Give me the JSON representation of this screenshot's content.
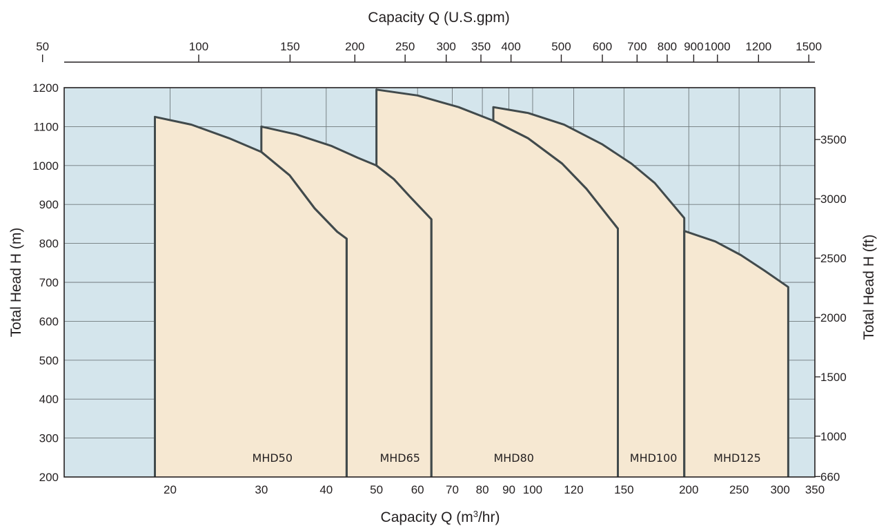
{
  "chart_data": {
    "type": "area",
    "x_scale": "log",
    "top_axis": {
      "title": "Capacity  Q (U.S.gpm)",
      "ticks": [
        50,
        100,
        150,
        200,
        250,
        300,
        350,
        400,
        500,
        600,
        700,
        800,
        900,
        1000,
        1200,
        1500
      ],
      "tick_labels": [
        "50",
        "100",
        "150",
        "200",
        "250",
        "300",
        "350",
        "400",
        "500",
        "600",
        "700",
        "800",
        "900",
        "1000",
        "1200",
        "1500"
      ]
    },
    "bottom_axis": {
      "title_prefix": "Capacity  Q (m",
      "title_sup": "3",
      "title_suffix": "/hr)",
      "ticks": [
        20,
        30,
        40,
        50,
        60,
        70,
        80,
        90,
        100,
        120,
        150,
        200,
        250,
        300,
        350
      ],
      "tick_labels": [
        "20",
        "30",
        "40",
        "50",
        "60",
        "70",
        "80",
        "90",
        "100",
        "120",
        "150",
        "200",
        "250",
        "300",
        "350"
      ],
      "range": [
        12.5,
        350
      ]
    },
    "left_axis": {
      "title": "Total Head  H (m)",
      "ticks": [
        200,
        300,
        400,
        500,
        600,
        700,
        800,
        900,
        1000,
        1100,
        1200
      ],
      "tick_labels": [
        "200",
        "300",
        "400",
        "500",
        "600",
        "700",
        "800",
        "900",
        "1000",
        "1100",
        "1200"
      ],
      "range": [
        200,
        1200
      ]
    },
    "right_axis": {
      "title": "Total Head  H (ft)",
      "ticks": [
        660,
        1000,
        1500,
        2000,
        2500,
        3000,
        3500
      ],
      "tick_labels": [
        "660",
        "1000",
        "1500",
        "2000",
        "2500",
        "3000",
        "3500"
      ]
    },
    "grid": true,
    "colors": {
      "plot_background": "#d4e5ec",
      "region_fill": "#f6e8d2",
      "outline": "#414a4c",
      "grid": "#6f787b",
      "axis": "#231f20"
    },
    "series": [
      {
        "name": "MHD50",
        "label_at": [
          31.5,
          250
        ],
        "points": [
          [
            18.7,
            200
          ],
          [
            18.7,
            1125
          ],
          [
            22,
            1105
          ],
          [
            26,
            1070
          ],
          [
            30,
            1035
          ],
          [
            34,
            975
          ],
          [
            38,
            890
          ],
          [
            42,
            830
          ],
          [
            43.8,
            812
          ],
          [
            43.8,
            200
          ]
        ]
      },
      {
        "name": "MHD65",
        "label_at": [
          55.5,
          250
        ],
        "points": [
          [
            43.8,
            200
          ],
          [
            43.8,
            812
          ],
          [
            42,
            830
          ],
          [
            38,
            890
          ],
          [
            34,
            975
          ],
          [
            30,
            1035
          ],
          [
            30,
            1100
          ],
          [
            35,
            1080
          ],
          [
            41,
            1050
          ],
          [
            46,
            1020
          ],
          [
            50,
            1000
          ],
          [
            54,
            965
          ],
          [
            58,
            920
          ],
          [
            63.8,
            862
          ],
          [
            63.8,
            200
          ]
        ]
      },
      {
        "name": "MHD80",
        "label_at": [
          92,
          250
        ],
        "points": [
          [
            63.8,
            200
          ],
          [
            63.8,
            862
          ],
          [
            58,
            920
          ],
          [
            54,
            965
          ],
          [
            50,
            1000
          ],
          [
            50,
            1195
          ],
          [
            60,
            1180
          ],
          [
            72,
            1150
          ],
          [
            84,
            1115
          ],
          [
            98,
            1070
          ],
          [
            114,
            1005
          ],
          [
            127,
            940
          ],
          [
            146,
            838
          ],
          [
            146,
            200
          ]
        ]
      },
      {
        "name": "MHD100",
        "label_at": [
          171,
          250
        ],
        "points": [
          [
            146,
            200
          ],
          [
            146,
            838
          ],
          [
            127,
            940
          ],
          [
            114,
            1005
          ],
          [
            98,
            1070
          ],
          [
            84,
            1115
          ],
          [
            84,
            1150
          ],
          [
            98,
            1135
          ],
          [
            115,
            1105
          ],
          [
            136,
            1055
          ],
          [
            155,
            1005
          ],
          [
            172,
            955
          ],
          [
            196,
            865
          ],
          [
            196,
            200
          ]
        ]
      },
      {
        "name": "MHD125",
        "label_at": [
          248,
          250
        ],
        "points": [
          [
            196,
            200
          ],
          [
            196,
            832
          ],
          [
            225,
            805
          ],
          [
            252,
            770
          ],
          [
            280,
            730
          ],
          [
            311,
            688
          ],
          [
            311,
            200
          ]
        ]
      }
    ]
  }
}
